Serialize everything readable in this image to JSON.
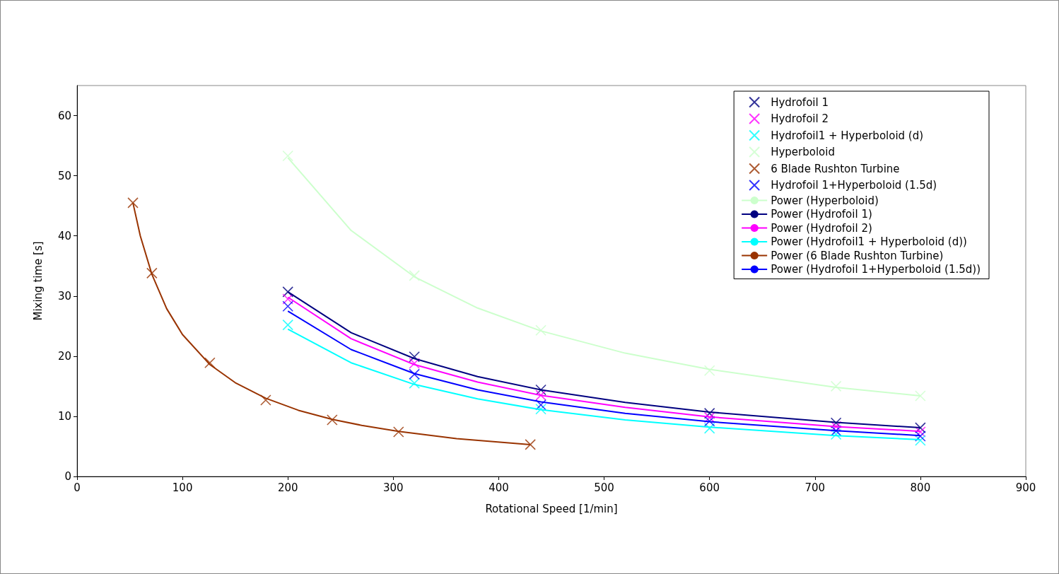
{
  "chart_data": {
    "type": "scatter",
    "xlabel": "Rotational Speed [1/min]",
    "ylabel": "Mixing time [s]",
    "xlim": [
      0,
      900
    ],
    "xticks": [
      0,
      100,
      200,
      300,
      400,
      500,
      600,
      700,
      800,
      900
    ],
    "ylim": [
      0,
      65
    ],
    "yticks": [
      0,
      10,
      20,
      30,
      40,
      50,
      60
    ],
    "grid": false,
    "legend": "top right",
    "marker": "cross",
    "series": [
      {
        "name": "Hydrofoil 1",
        "color": "#000080",
        "x": [
          200,
          320,
          440,
          600,
          720,
          800
        ],
        "values": [
          30.7,
          19.9,
          14.4,
          10.5,
          8.9,
          8.1
        ]
      },
      {
        "name": "Hydrofoil 2",
        "color": "#ff00ff",
        "x": [
          200,
          320,
          440,
          600,
          720,
          800
        ],
        "values": [
          29.5,
          18.8,
          13.5,
          9.8,
          8.3,
          7.4
        ]
      },
      {
        "name": "Hydrofoil1 + Hyperboloid (d)",
        "color": "#00ffff",
        "x": [
          200,
          320,
          440,
          600,
          720,
          800
        ],
        "values": [
          25.2,
          15.5,
          11.2,
          8.0,
          7.0,
          6.0
        ]
      },
      {
        "name": "Hyperboloid",
        "color": "#ccffcc",
        "x": [
          200,
          320,
          440,
          600,
          720,
          800
        ],
        "values": [
          53.3,
          33.4,
          24.3,
          17.6,
          15.0,
          13.4
        ]
      },
      {
        "name": "6 Blade Rushton Turbine",
        "color": "#993300",
        "x": [
          53,
          71,
          126,
          179,
          242,
          305,
          430
        ],
        "values": [
          45.5,
          33.8,
          18.9,
          12.7,
          9.4,
          7.4,
          5.3
        ]
      },
      {
        "name": "Hydrofoil 1+Hyperboloid (1.5d)",
        "color": "#0000ff",
        "x": [
          200,
          320,
          440,
          600,
          720,
          800
        ],
        "values": [
          28.3,
          17.0,
          11.9,
          9.2,
          7.6,
          6.7
        ]
      },
      {
        "name": "Power (Hyperboloid)",
        "type": "line",
        "marker": "none",
        "color": "#ccffcc",
        "x": [
          200,
          260,
          320,
          380,
          440,
          520,
          600,
          720,
          800
        ],
        "values": [
          53.0,
          40.9,
          33.2,
          28.0,
          24.2,
          20.5,
          17.8,
          14.8,
          13.4
        ]
      },
      {
        "name": "Power (Hydrofoil 1)",
        "type": "line",
        "marker": "none",
        "color": "#000080",
        "x": [
          200,
          260,
          320,
          380,
          440,
          520,
          600,
          720,
          800
        ],
        "values": [
          30.7,
          23.9,
          19.6,
          16.6,
          14.4,
          12.3,
          10.7,
          9.0,
          8.1
        ]
      },
      {
        "name": "Power (Hydrofoil 2)",
        "type": "line",
        "marker": "none",
        "color": "#ff00ff",
        "x": [
          200,
          260,
          320,
          380,
          440,
          520,
          600,
          720,
          800
        ],
        "values": [
          29.8,
          22.9,
          18.6,
          15.7,
          13.5,
          11.5,
          9.9,
          8.3,
          7.5
        ]
      },
      {
        "name": "Power (Hydrofoil1 + Hyperboloid (d))",
        "type": "line",
        "marker": "none",
        "color": "#00ffff",
        "x": [
          200,
          260,
          320,
          380,
          440,
          520,
          600,
          720,
          800
        ],
        "values": [
          24.5,
          18.9,
          15.3,
          12.9,
          11.1,
          9.4,
          8.2,
          6.8,
          6.1
        ]
      },
      {
        "name": "Power (6 Blade Rushton Turbine)",
        "type": "line",
        "marker": "none",
        "color": "#993300",
        "x": [
          53,
          60,
          71,
          85,
          100,
          126,
          150,
          179,
          210,
          242,
          270,
          305,
          360,
          430
        ],
        "values": [
          45.5,
          40.0,
          33.6,
          27.9,
          23.6,
          18.6,
          15.6,
          13.0,
          11.0,
          9.5,
          8.5,
          7.5,
          6.3,
          5.3
        ]
      },
      {
        "name": "Power (Hydrofoil 1+Hyperboloid (1.5d))",
        "type": "line",
        "marker": "none",
        "color": "#0000ff",
        "x": [
          200,
          260,
          320,
          380,
          440,
          520,
          600,
          720,
          800
        ],
        "values": [
          27.5,
          21.1,
          17.1,
          14.4,
          12.4,
          10.5,
          9.1,
          7.6,
          6.8
        ]
      }
    ]
  }
}
